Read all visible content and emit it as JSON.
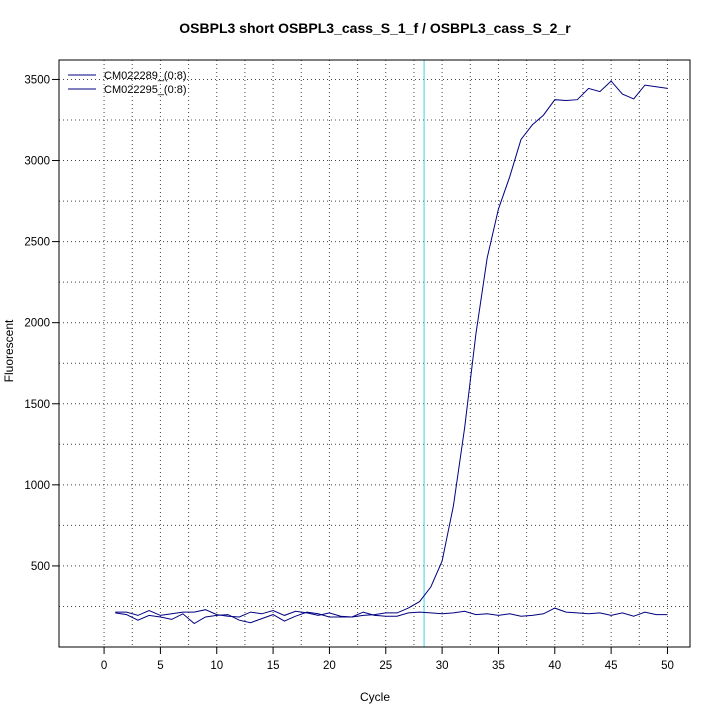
{
  "chart_data": {
    "type": "line",
    "title": "OSBPL3 short OSBPL3_cass_S_1_f / OSBPL3_cass_S_2_r",
    "xlabel": "Cycle",
    "ylabel": "Fluorescent",
    "xlim": [
      -4,
      52
    ],
    "ylim": [
      0,
      3620
    ],
    "xticks": [
      0,
      5,
      10,
      15,
      20,
      25,
      30,
      35,
      40,
      45,
      50
    ],
    "yticks": [
      500,
      1000,
      1500,
      2000,
      2500,
      3000,
      3500
    ],
    "grid": true,
    "threshold_cycle": 28.4,
    "legend_position": "top-left",
    "series": [
      {
        "name": "CM022289_(0:8)",
        "color": "#000080",
        "x": [
          1,
          2,
          3,
          4,
          5,
          6,
          7,
          8,
          9,
          10,
          11,
          12,
          13,
          14,
          15,
          16,
          17,
          18,
          19,
          20,
          21,
          22,
          23,
          24,
          25,
          26,
          27,
          28,
          29,
          30,
          31,
          32,
          33,
          34,
          35,
          36,
          37,
          38,
          39,
          40,
          41,
          42,
          43,
          44,
          45,
          46,
          47,
          48,
          49,
          50
        ],
        "values": [
          210,
          200,
          165,
          195,
          185,
          170,
          205,
          145,
          185,
          195,
          200,
          165,
          150,
          175,
          200,
          160,
          190,
          215,
          205,
          185,
          185,
          185,
          195,
          200,
          210,
          210,
          240,
          280,
          370,
          530,
          870,
          1350,
          1930,
          2400,
          2700,
          2900,
          3130,
          3220,
          3280,
          3375,
          3370,
          3375,
          3445,
          3425,
          3490,
          3410,
          3380,
          3465,
          3455,
          3445
        ]
      },
      {
        "name": "CM022295_(0:8)",
        "color": "#000080",
        "x": [
          1,
          2,
          3,
          4,
          5,
          6,
          7,
          8,
          9,
          10,
          11,
          12,
          13,
          14,
          15,
          16,
          17,
          18,
          19,
          20,
          21,
          22,
          23,
          24,
          25,
          26,
          27,
          28,
          29,
          30,
          31,
          32,
          33,
          34,
          35,
          36,
          37,
          38,
          39,
          40,
          41,
          42,
          43,
          44,
          45,
          46,
          47,
          48,
          49,
          50
        ],
        "values": [
          215,
          215,
          195,
          225,
          195,
          205,
          215,
          215,
          230,
          200,
          190,
          185,
          215,
          205,
          225,
          195,
          220,
          210,
          195,
          210,
          190,
          185,
          215,
          195,
          190,
          190,
          210,
          215,
          210,
          205,
          210,
          220,
          200,
          205,
          195,
          205,
          190,
          195,
          205,
          240,
          215,
          210,
          205,
          210,
          195,
          210,
          190,
          215,
          200,
          200
        ]
      }
    ]
  }
}
